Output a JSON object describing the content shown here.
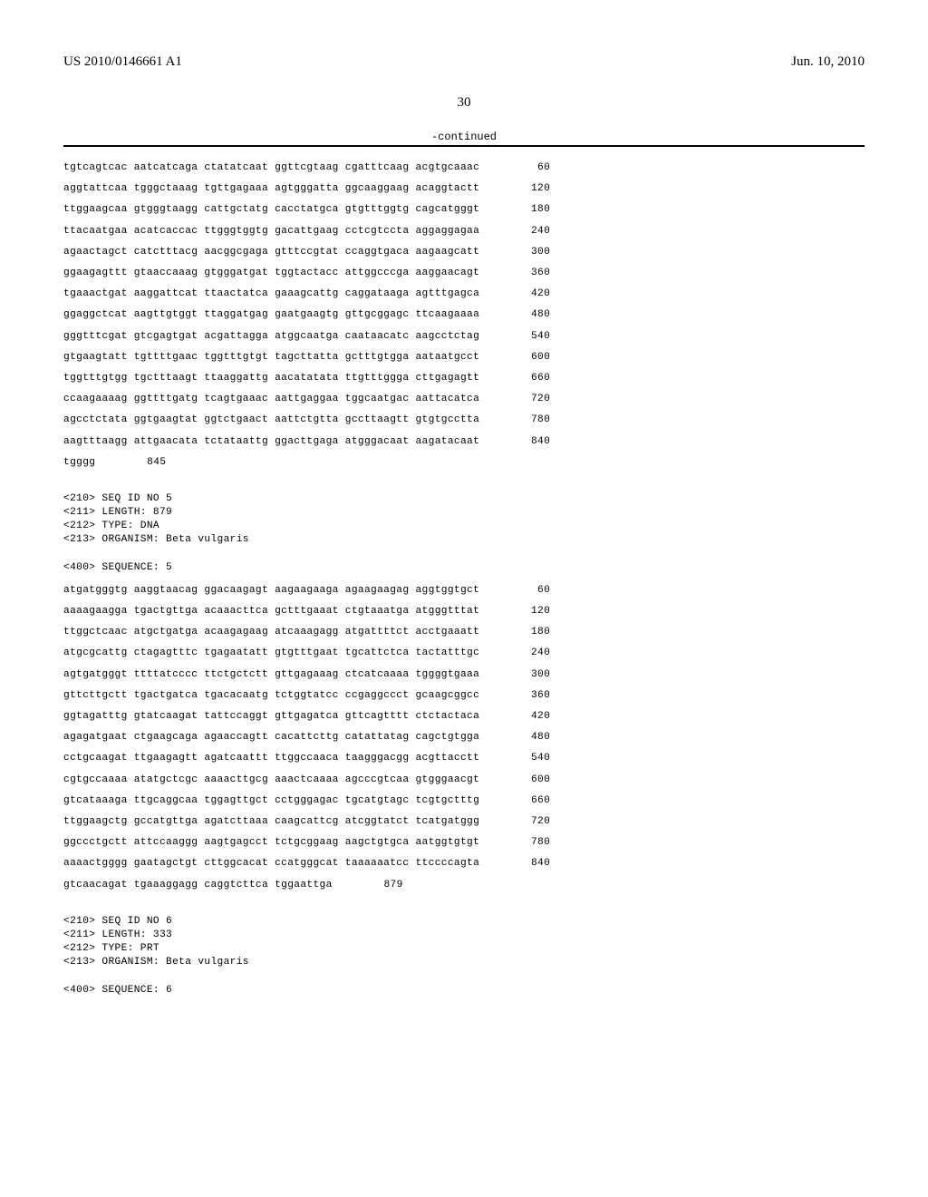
{
  "header": {
    "pub_number": "US 2010/0146661 A1",
    "pub_date": "Jun. 10, 2010",
    "page": "30",
    "continued": "-continued"
  },
  "seq4": {
    "lines": [
      {
        "t": "tgtcagtcac aatcatcaga ctatatcaat ggttcgtaag cgatttcaag acgtgcaaac",
        "n": "60"
      },
      {
        "t": "aggtattcaa tgggctaaag tgttgagaaa agtgggatta ggcaaggaag acaggtactt",
        "n": "120"
      },
      {
        "t": "ttggaagcaa gtgggtaagg cattgctatg cacctatgca gtgtttggtg cagcatgggt",
        "n": "180"
      },
      {
        "t": "ttacaatgaa acatcaccac ttgggtggtg gacattgaag cctcgtccta aggaggagaa",
        "n": "240"
      },
      {
        "t": "agaactagct catctttacg aacggcgaga gtttccgtat ccaggtgaca aagaagcatt",
        "n": "300"
      },
      {
        "t": "ggaagagttt gtaaccaaag gtgggatgat tggtactacc attggcccga aaggaacagt",
        "n": "360"
      },
      {
        "t": "tgaaactgat aaggattcat ttaactatca gaaagcattg caggataaga agtttgagca",
        "n": "420"
      },
      {
        "t": "ggaggctcat aagttgtggt ttaggatgag gaatgaagtg gttgcggagc ttcaagaaaa",
        "n": "480"
      },
      {
        "t": "gggtttcgat gtcgagtgat acgattagga atggcaatga caataacatc aagcctctag",
        "n": "540"
      },
      {
        "t": "gtgaagtatt tgttttgaac tggtttgtgt tagcttatta gctttgtgga aataatgcct",
        "n": "600"
      },
      {
        "t": "tggtttgtgg tgctttaagt ttaaggattg aacatatata ttgtttggga cttgagagtt",
        "n": "660"
      },
      {
        "t": "ccaagaaaag ggttttgatg tcagtgaaac aattgaggaa tggcaatgac aattacatca",
        "n": "720"
      },
      {
        "t": "agcctctata ggtgaagtat ggtctgaact aattctgtta gccttaagtt gtgtgcctta",
        "n": "780"
      },
      {
        "t": "aagtttaagg attgaacata tctataattg ggacttgaga atgggacaat aagatacaat",
        "n": "840"
      },
      {
        "t": "tgggg",
        "n": "845"
      }
    ]
  },
  "meta5": {
    "l1": "<210> SEQ ID NO 5",
    "l2": "<211> LENGTH: 879",
    "l3": "<212> TYPE: DNA",
    "l4": "<213> ORGANISM: Beta vulgaris",
    "l5": "<400> SEQUENCE: 5"
  },
  "seq5": {
    "lines": [
      {
        "t": "atgatgggtg aaggtaacag ggacaagagt aagaagaaga agaagaagag aggtggtgct",
        "n": "60"
      },
      {
        "t": "aaaagaagga tgactgttga acaaacttca gctttgaaat ctgtaaatga atgggtttat",
        "n": "120"
      },
      {
        "t": "ttggctcaac atgctgatga acaagagaag atcaaagagg atgattttct acctgaaatt",
        "n": "180"
      },
      {
        "t": "atgcgcattg ctagagtttc tgagaatatt gtgtttgaat tgcattctca tactatttgc",
        "n": "240"
      },
      {
        "t": "agtgatgggt ttttatcccc ttctgctctt gttgagaaag ctcatcaaaa tggggtgaaa",
        "n": "300"
      },
      {
        "t": "gttcttgctt tgactgatca tgacacaatg tctggtatcc ccgaggccct gcaagcggcc",
        "n": "360"
      },
      {
        "t": "ggtagatttg gtatcaagat tattccaggt gttgagatca gttcagtttt ctctactaca",
        "n": "420"
      },
      {
        "t": "agagatgaat ctgaagcaga agaaccagtt cacattcttg catattatag cagctgtgga",
        "n": "480"
      },
      {
        "t": "cctgcaagat ttgaagagtt agatcaattt ttggccaaca taagggacgg acgttacctt",
        "n": "540"
      },
      {
        "t": "cgtgccaaaa atatgctcgc aaaacttgcg aaactcaaaa agcccgtcaa gtgggaacgt",
        "n": "600"
      },
      {
        "t": "gtcataaaga ttgcaggcaa tggagttgct cctgggagac tgcatgtagc tcgtgctttg",
        "n": "660"
      },
      {
        "t": "ttggaagctg gccatgttga agatcttaaa caagcattcg atcggtatct tcatgatggg",
        "n": "720"
      },
      {
        "t": "ggccctgctt attccaaggg aagtgagcct tctgcggaag aagctgtgca aatggtgtgt",
        "n": "780"
      },
      {
        "t": "aaaactgggg gaatagctgt cttggcacat ccatgggcat taaaaaatcc ttccccagta",
        "n": "840"
      },
      {
        "t": "gtcaacagat tgaaaggagg caggtcttca tggaattga",
        "n": "879"
      }
    ]
  },
  "meta6": {
    "l1": "<210> SEQ ID NO 6",
    "l2": "<211> LENGTH: 333",
    "l3": "<212> TYPE: PRT",
    "l4": "<213> ORGANISM: Beta vulgaris",
    "l5": "<400> SEQUENCE: 6"
  }
}
